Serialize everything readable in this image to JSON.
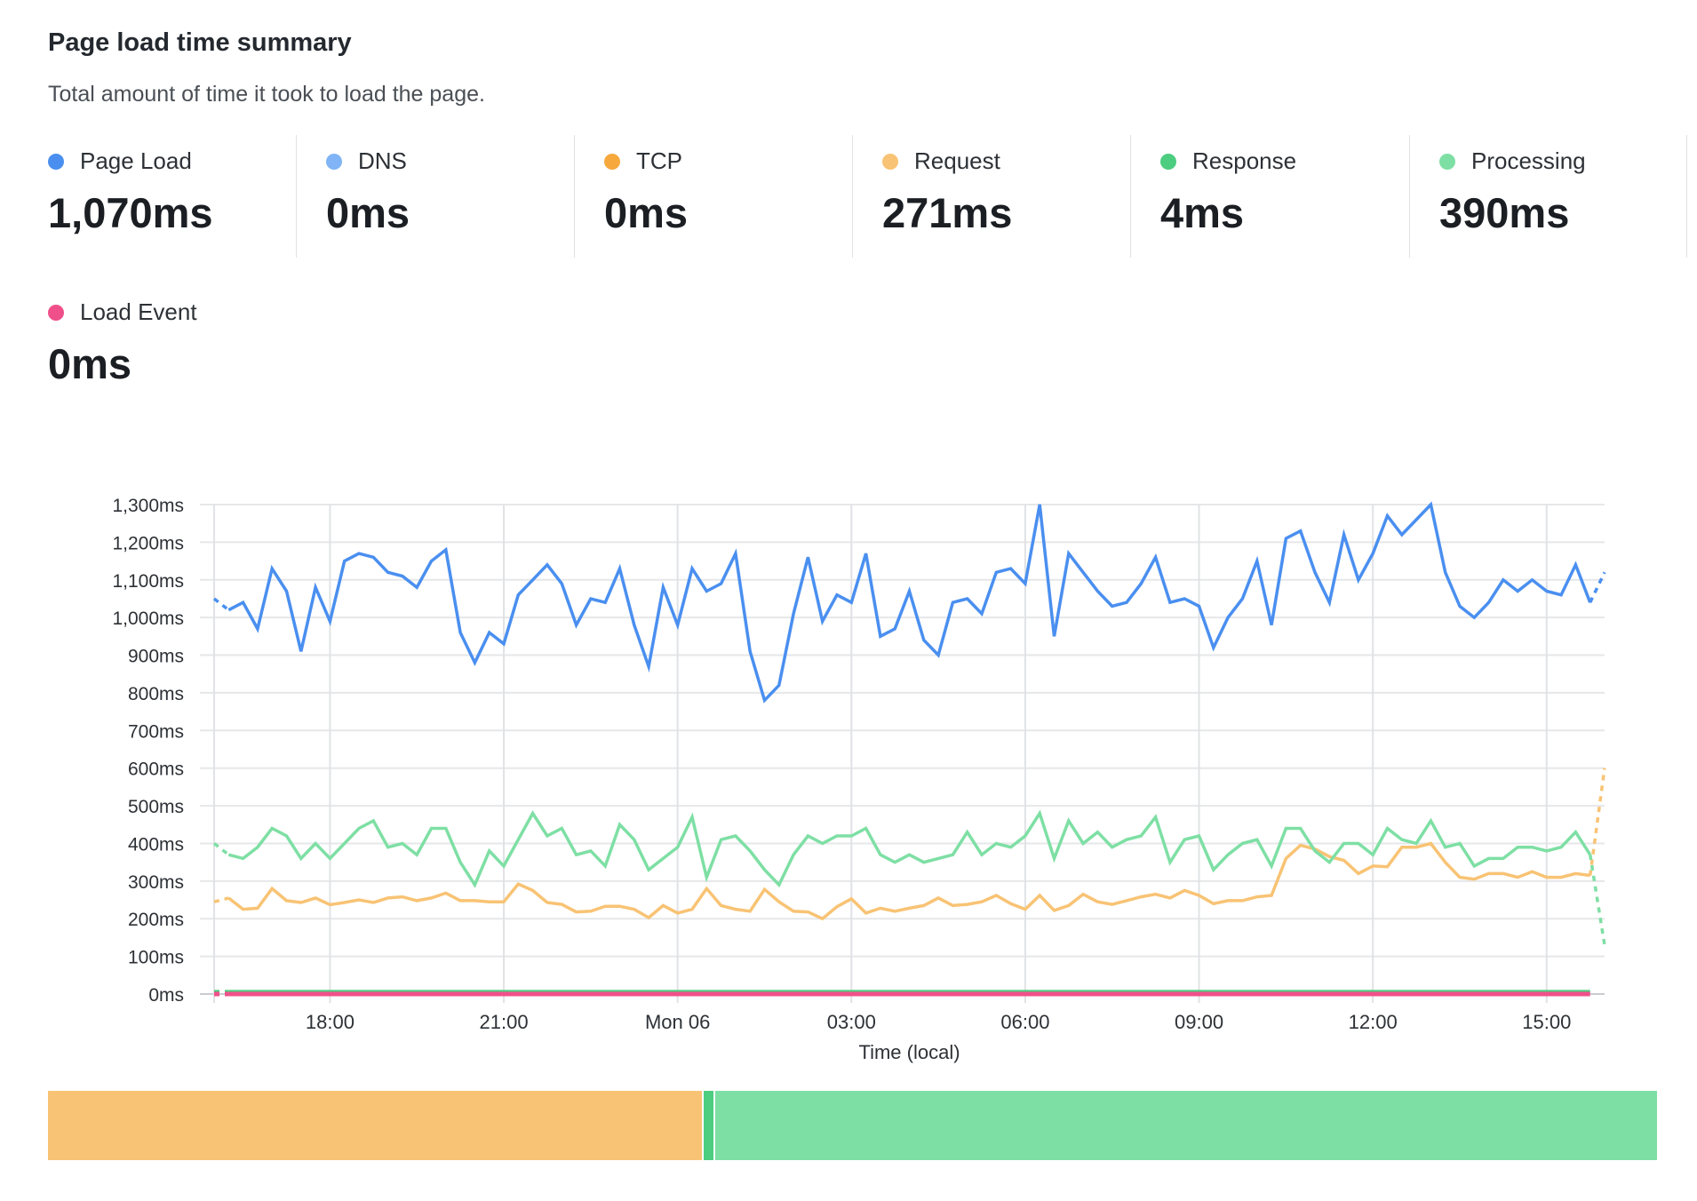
{
  "header": {
    "title": "Page load time summary",
    "subtitle": "Total amount of time it took to load the page."
  },
  "stats": [
    {
      "label": "Page Load",
      "value": "1,070ms",
      "color": "#4a8ff0"
    },
    {
      "label": "DNS",
      "value": "0ms",
      "color": "#80b4f6"
    },
    {
      "label": "TCP",
      "value": "0ms",
      "color": "#f6a83c"
    },
    {
      "label": "Request",
      "value": "271ms",
      "color": "#f8c374"
    },
    {
      "label": "Response",
      "value": "4ms",
      "color": "#4ccd7f"
    },
    {
      "label": "Processing",
      "value": "390ms",
      "color": "#7edfa4"
    },
    {
      "label": "Load Event",
      "value": "0ms",
      "color": "#f0508a"
    }
  ],
  "chart_data": {
    "type": "line",
    "xlabel": "Time (local)",
    "ylabel": "",
    "x_start": "Sun 16:00",
    "x_end": "Mon 16:00",
    "interval": "15m",
    "x_ticks": [
      "18:00",
      "21:00",
      "Mon 06",
      "03:00",
      "06:00",
      "09:00",
      "12:00",
      "15:00"
    ],
    "x_tick_hours": [
      2,
      5,
      8,
      11,
      14,
      17,
      20,
      23
    ],
    "x_range_hours": 24,
    "y_ticks": [
      "0ms",
      "100ms",
      "200ms",
      "300ms",
      "400ms",
      "500ms",
      "600ms",
      "700ms",
      "800ms",
      "900ms",
      "1,000ms",
      "1,100ms",
      "1,200ms",
      "1,300ms"
    ],
    "ylim": [
      0,
      1300
    ],
    "grid": true,
    "legend": "none",
    "series": [
      {
        "name": "Page Load",
        "color": "#4a8ff0",
        "values": [
          1050,
          1020,
          1040,
          970,
          1130,
          1070,
          910,
          1080,
          990,
          1150,
          1170,
          1160,
          1120,
          1110,
          1080,
          1150,
          1180,
          960,
          880,
          960,
          930,
          1060,
          1100,
          1140,
          1090,
          980,
          1050,
          1040,
          1130,
          980,
          870,
          1080,
          980,
          1130,
          1070,
          1090,
          1170,
          910,
          780,
          820,
          1010,
          1160,
          990,
          1060,
          1040,
          1170,
          950,
          970,
          1070,
          940,
          900,
          1040,
          1050,
          1010,
          1120,
          1130,
          1090,
          1300,
          950,
          1170,
          1120,
          1070,
          1030,
          1040,
          1090,
          1160,
          1040,
          1050,
          1030,
          920,
          1000,
          1050,
          1150,
          980,
          1210,
          1230,
          1120,
          1040,
          1220,
          1100,
          1170,
          1270,
          1220,
          1260,
          1300,
          1120,
          1030,
          1000,
          1040,
          1100,
          1070,
          1100,
          1070,
          1060,
          1140,
          1040,
          1120
        ]
      },
      {
        "name": "Processing",
        "color": "#7edfa4",
        "values": [
          400,
          370,
          360,
          390,
          440,
          420,
          360,
          400,
          360,
          400,
          440,
          460,
          390,
          400,
          370,
          440,
          440,
          350,
          290,
          380,
          340,
          410,
          480,
          420,
          440,
          370,
          380,
          340,
          450,
          410,
          330,
          360,
          390,
          470,
          310,
          410,
          420,
          380,
          330,
          290,
          370,
          420,
          400,
          420,
          420,
          440,
          370,
          350,
          370,
          350,
          360,
          370,
          430,
          370,
          400,
          390,
          420,
          480,
          360,
          460,
          400,
          430,
          390,
          410,
          420,
          470,
          350,
          410,
          420,
          330,
          370,
          400,
          410,
          340,
          440,
          440,
          380,
          350,
          400,
          400,
          370,
          440,
          410,
          400,
          460,
          390,
          400,
          340,
          360,
          360,
          390,
          390,
          380,
          390,
          430,
          370,
          130
        ]
      },
      {
        "name": "Request",
        "color": "#f8c374",
        "values": [
          245,
          255,
          225,
          228,
          280,
          248,
          243,
          255,
          237,
          243,
          250,
          243,
          255,
          258,
          248,
          255,
          268,
          248,
          248,
          245,
          245,
          292,
          275,
          243,
          238,
          218,
          220,
          233,
          233,
          225,
          203,
          235,
          215,
          225,
          280,
          235,
          225,
          220,
          278,
          245,
          220,
          218,
          200,
          232,
          253,
          215,
          228,
          220,
          228,
          235,
          255,
          235,
          238,
          245,
          262,
          240,
          225,
          262,
          222,
          235,
          265,
          245,
          238,
          248,
          258,
          265,
          255,
          275,
          262,
          240,
          248,
          248,
          258,
          262,
          360,
          395,
          385,
          365,
          355,
          320,
          340,
          338,
          390,
          390,
          400,
          350,
          310,
          305,
          320,
          320,
          310,
          325,
          310,
          310,
          320,
          315,
          600
        ]
      },
      {
        "name": "Response",
        "color": "#4ccd7f",
        "values": [
          5,
          5,
          5,
          5,
          5,
          5,
          5,
          5,
          5,
          5,
          5,
          5,
          5,
          5,
          5,
          5,
          5,
          5,
          5,
          5,
          5,
          5,
          5,
          5,
          5,
          5,
          5,
          5,
          5,
          5,
          5,
          5,
          5,
          5,
          5,
          5,
          5,
          5,
          5,
          5,
          5,
          5,
          5,
          5,
          5,
          5,
          5,
          5,
          5,
          5,
          5,
          5,
          5,
          5,
          5,
          5,
          5,
          5,
          5,
          5,
          5,
          5,
          5,
          5,
          5,
          5,
          5,
          5,
          5,
          5,
          5,
          5,
          5,
          5,
          5,
          5,
          5,
          5,
          5,
          5,
          5,
          5,
          5,
          5,
          5,
          5,
          5,
          5,
          5,
          5,
          5,
          5,
          5,
          5,
          5,
          5,
          5
        ]
      },
      {
        "name": "Load Event",
        "color": "#f0508a",
        "values": [
          0,
          0,
          0,
          0,
          0,
          0,
          0,
          0,
          0,
          0,
          0,
          0,
          0,
          0,
          0,
          0,
          0,
          0,
          0,
          0,
          0,
          0,
          0,
          0,
          0,
          0,
          0,
          0,
          0,
          0,
          0,
          0,
          0,
          0,
          0,
          0,
          0,
          0,
          0,
          0,
          0,
          0,
          0,
          0,
          0,
          0,
          0,
          0,
          0,
          0,
          0,
          0,
          0,
          0,
          0,
          0,
          0,
          0,
          0,
          0,
          0,
          0,
          0,
          0,
          0,
          0,
          0,
          0,
          0,
          0,
          0,
          0,
          0,
          0,
          0,
          0,
          0,
          0,
          0,
          0,
          0,
          0,
          0,
          0,
          0,
          0,
          0,
          0,
          0,
          0,
          0,
          0,
          0,
          0,
          0,
          0,
          0
        ]
      }
    ]
  },
  "breakdown_bar": [
    {
      "label": "Request",
      "value": 271,
      "color": "#f8c374"
    },
    {
      "label": "Response",
      "value": 4,
      "color": "#4ccd7f"
    },
    {
      "label": "Processing",
      "value": 390,
      "color": "#7edfa4"
    }
  ]
}
